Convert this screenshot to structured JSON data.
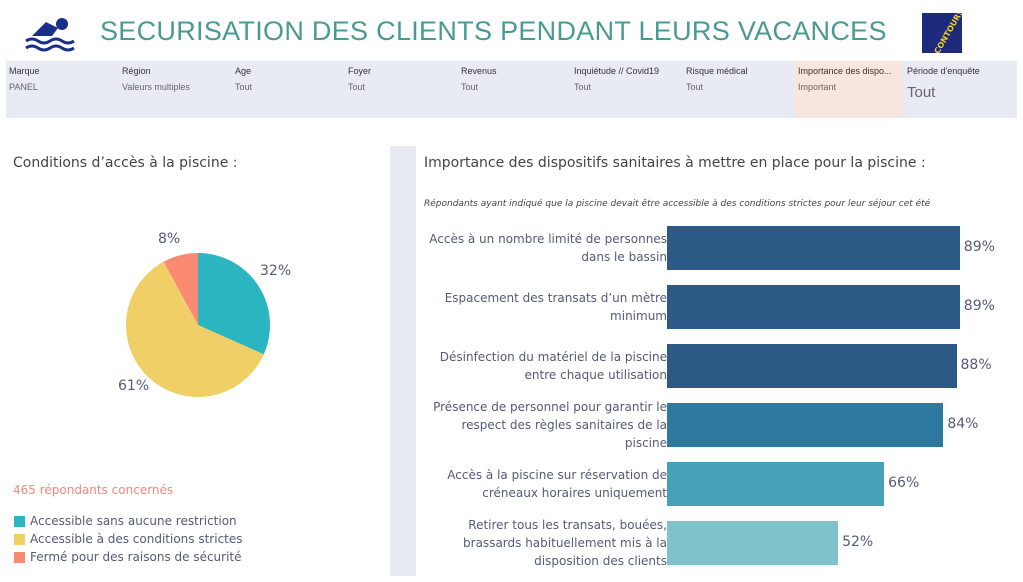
{
  "header": {
    "title": "SECURISATION DES CLIENTS PENDANT LEURS VACANCES",
    "logo_text": "CONTOURS"
  },
  "filters": [
    {
      "label": "Marque",
      "value": "PANEL"
    },
    {
      "label": "Région",
      "value": "Valeurs multiples"
    },
    {
      "label": "Age",
      "value": "Tout"
    },
    {
      "label": "Foyer",
      "value": "Tout"
    },
    {
      "label": "Revenus",
      "value": "Tout"
    },
    {
      "label": "Inquiétude // Covid19",
      "value": "Tout"
    },
    {
      "label": "Risque médical",
      "value": "Tout"
    },
    {
      "label": "Importance des dispo...",
      "value": "Important"
    },
    {
      "label": "Période d'enquête",
      "value": "Tout"
    }
  ],
  "left": {
    "title": "Conditions d’accès à la piscine :",
    "count": "465 répondants concernés"
  },
  "right": {
    "title": "Importance des dispositifs sanitaires à mettre en place pour la piscine :",
    "subtitle": "Répondants ayant indiqué que la piscine devait être accessible à des conditions strictes pour leur séjour cet été"
  },
  "chart_data": [
    {
      "type": "pie",
      "title": "Conditions d’accès à la piscine :",
      "slices": [
        {
          "label": "Accessible sans aucune restriction",
          "value": 32,
          "display": "32%",
          "color": "#2bb5c0"
        },
        {
          "label": "Accessible à des conditions strictes",
          "value": 61,
          "display": "61%",
          "color": "#f1cf67"
        },
        {
          "label": "Fermé pour des raisons de sécurité",
          "value": 8,
          "display": "8%",
          "color": "#fa8a72"
        }
      ]
    },
    {
      "type": "bar",
      "orientation": "horizontal",
      "title": "Importance des dispositifs sanitaires à mettre en place pour la piscine :",
      "xlim": [
        0,
        100
      ],
      "categories": [
        "Accès à un nombre limité de personnes dans le bassin",
        "Espacement des transats d’un mètre minimum",
        "Désinfection du matériel de la piscine entre chaque utilisation",
        "Présence de personnel pour garantir le respect des règles sanitaires de la piscine",
        "Accès à la piscine sur réservation de créneaux horaires uniquement",
        "Retirer tous les transats, bouées, brassards habituellement mis à la disposition des clients"
      ],
      "values": [
        89,
        89,
        88,
        84,
        66,
        52
      ],
      "labels": [
        "89%",
        "89%",
        "88%",
        "84%",
        "66%",
        "52%"
      ],
      "colors": [
        "#2c5985",
        "#2c5985",
        "#2c5985",
        "#2e79a0",
        "#44a1b8",
        "#80c2cb"
      ]
    }
  ]
}
